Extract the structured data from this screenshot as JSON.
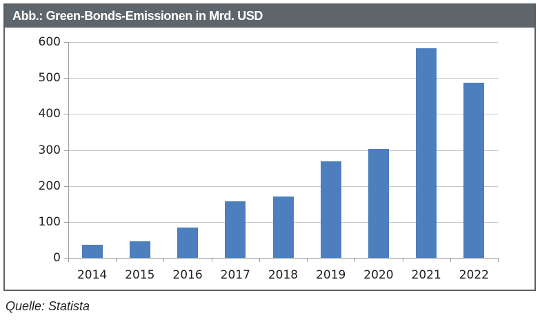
{
  "header": {
    "title": "Abb.: Green-Bonds-Emissionen in Mrd. USD"
  },
  "source": {
    "label": "Quelle: Statista"
  },
  "colors": {
    "titlebar_bg": "#5f666b",
    "titlebar_text": "#ffffff",
    "bar_fill": "#4d7ebd",
    "gridline": "#c7c7c7",
    "axis_line": "#9e9e9e",
    "label_text": "#1f1f1f",
    "frame_border": "#5a5f63"
  },
  "chart_data": {
    "type": "bar",
    "title": "Abb.: Green-Bonds-Emissionen in Mrd. USD",
    "categories": [
      "2014",
      "2015",
      "2016",
      "2017",
      "2018",
      "2019",
      "2020",
      "2021",
      "2022"
    ],
    "values": [
      37,
      46,
      85,
      158,
      170,
      268,
      302,
      582,
      487
    ],
    "xlabel": "",
    "ylabel": "",
    "ylim": [
      0,
      600
    ],
    "ytick_step": 100,
    "grid": true,
    "legend_position": "none",
    "source_note": "Quelle: Statista"
  }
}
